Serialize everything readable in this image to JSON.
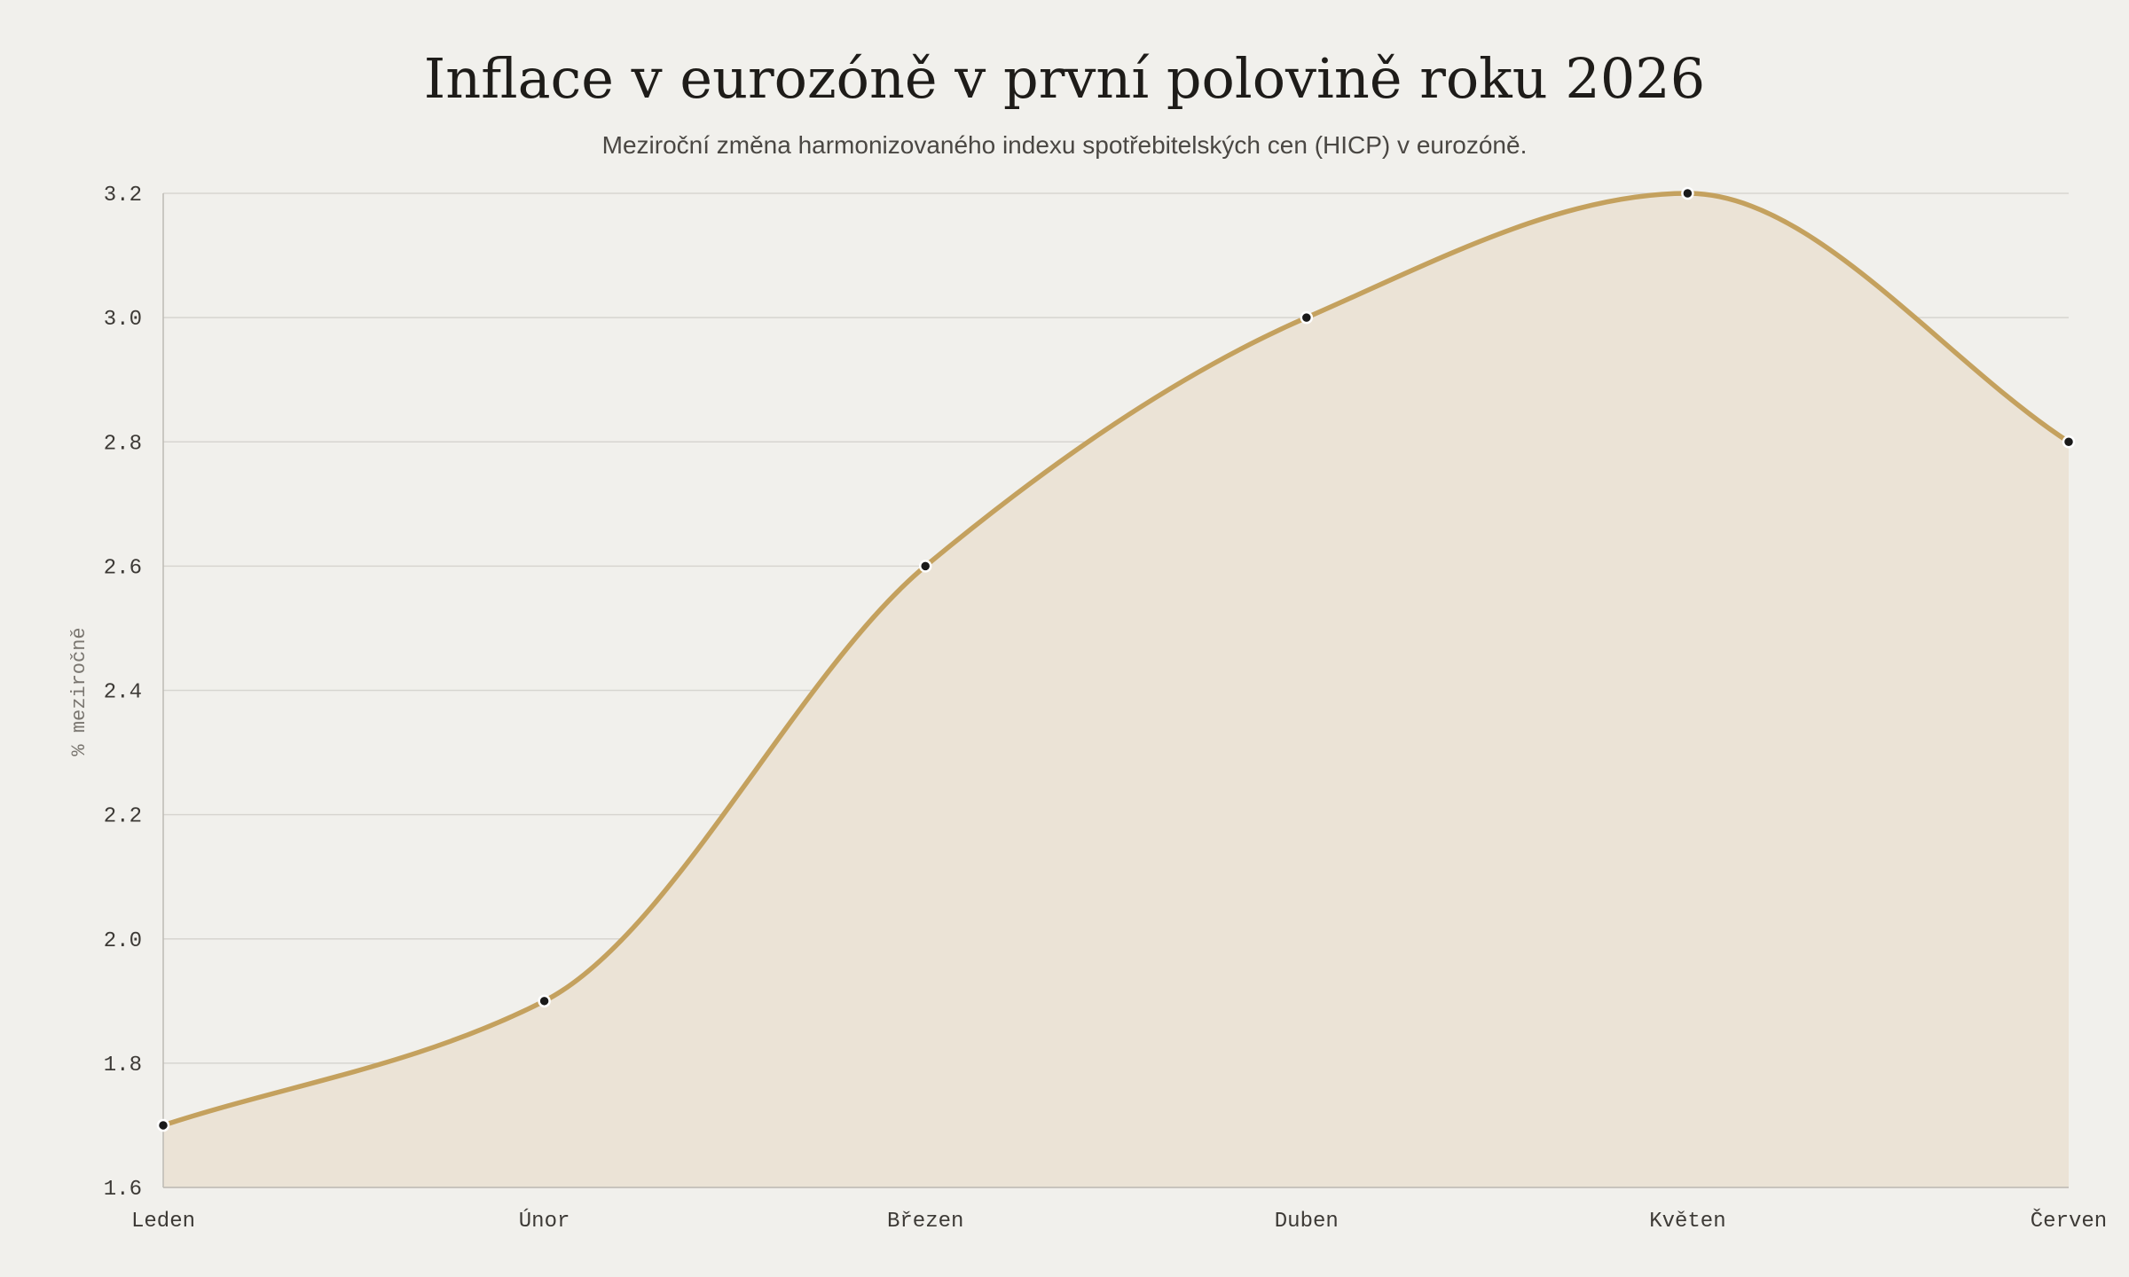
{
  "chart_data": {
    "type": "area",
    "title": "Inflace v eurozóně v první polovině roku 2026",
    "subtitle": "Meziroční změna harmonizovaného indexu spotřebitelských cen (HICP) v eurozóně.",
    "xlabel": "",
    "ylabel": "% meziročně",
    "categories": [
      "Leden",
      "Únor",
      "Březen",
      "Duben",
      "Květen",
      "Červen"
    ],
    "series": [
      {
        "values": [
          1.7,
          1.9,
          2.6,
          3.0,
          3.2,
          2.8
        ]
      }
    ],
    "ylim": [
      1.6,
      3.2
    ],
    "yticks": [
      "1.6",
      "1.8",
      "2.0",
      "2.2",
      "2.4",
      "2.6",
      "2.8",
      "3.0",
      "3.2"
    ],
    "grid": true,
    "legend": "none",
    "colors": {
      "line": "#c4a15e",
      "fill": "#ebe3d6",
      "point": "#1a1a1a",
      "point_stroke": "#ffffff",
      "grid": "#d7d5d0",
      "axis": "#bdbab4"
    }
  }
}
